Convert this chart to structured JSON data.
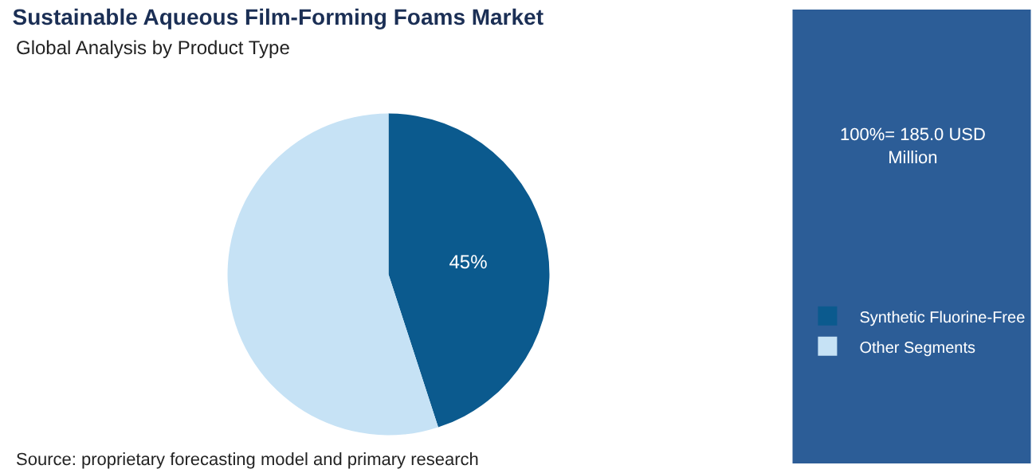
{
  "chart_data": {
    "type": "pie",
    "title": "Sustainable Aqueous Film-Forming Foams Market",
    "subtitle": "Global Analysis by Product Type",
    "categories": [
      "Synthetic Fluorine-Free",
      "Other Segments"
    ],
    "values": [
      45,
      55
    ],
    "colors": [
      "#0b5a8e",
      "#c6e2f5"
    ],
    "value_labels": [
      "45%",
      null
    ],
    "legend": "right",
    "annotations": [
      "100%= 185.0 USD Million",
      "Source: proprietary forecasting model and primary research"
    ]
  }
}
